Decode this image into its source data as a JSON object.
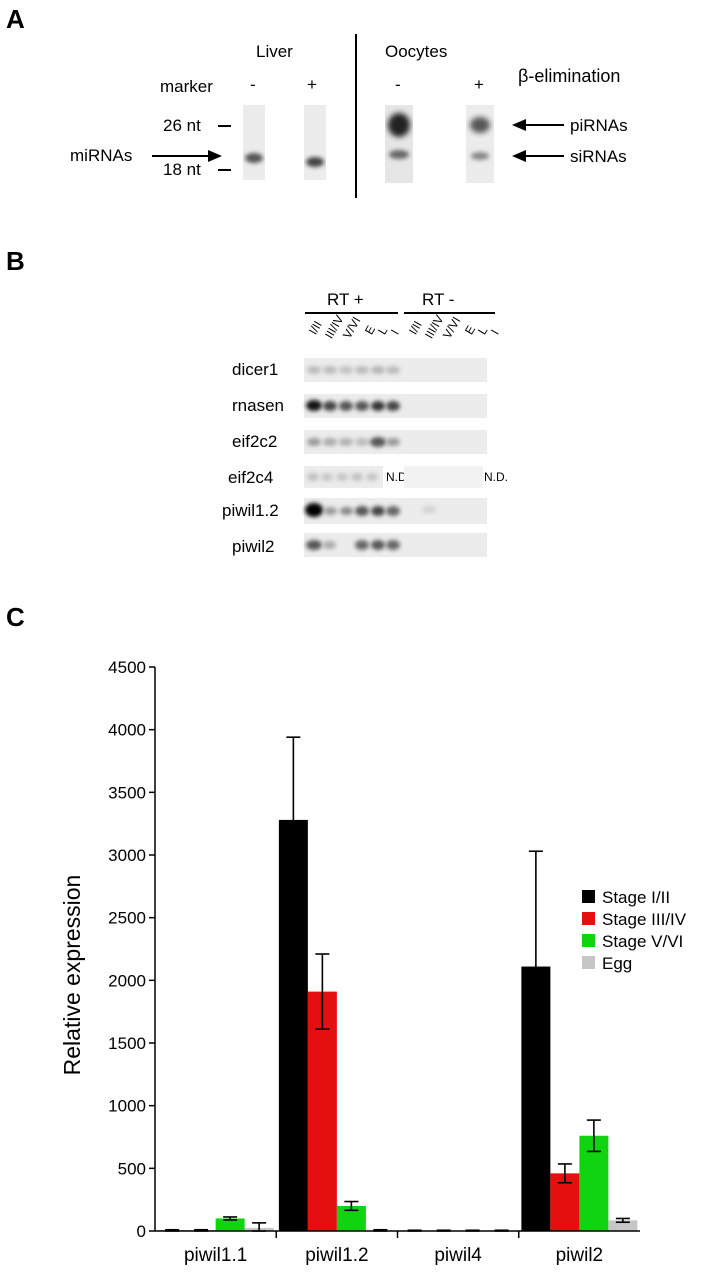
{
  "panels": {
    "a": "A",
    "b": "B",
    "c": "C"
  },
  "panel_a": {
    "liver_label": "Liver",
    "oocytes_label": "Oocytes",
    "marker_label": "marker",
    "minus_1": "-",
    "plus_1": "+",
    "minus_2": "-",
    "plus_2": "+",
    "treatment_label": "β-elimination",
    "size_26": "26 nt",
    "size_18": "18 nt",
    "mirnas_label": "miRNAs",
    "pirnas_label": "piRNAs",
    "sirnas_label": "siRNAs"
  },
  "panel_b": {
    "rt_plus": "RT +",
    "rt_minus": "RT -",
    "lanes_rt_plus": [
      "I/II",
      "III/IV",
      "V/VI",
      "E",
      "L",
      "I"
    ],
    "lanes_rt_minus": [
      "I/II",
      "III/IV",
      "V/VI",
      "E",
      "L",
      "I"
    ],
    "genes": [
      "dicer1",
      "rnasen",
      "eif2c2",
      "eif2c4",
      "piwil1.2",
      "piwil2"
    ],
    "nd_label": "N.D."
  },
  "chart_data": {
    "type": "bar",
    "ylabel": "Relative expression",
    "xlabel": "",
    "ylim": [
      0,
      4500
    ],
    "yticks": [
      0,
      500,
      1000,
      1500,
      2000,
      2500,
      3000,
      3500,
      4000,
      4500
    ],
    "categories": [
      "piwil1.1",
      "piwil1.2",
      "piwil4",
      "piwil2"
    ],
    "legend_position": "right",
    "series": [
      {
        "name": "Stage I/II",
        "color": "#000000",
        "values": [
          5,
          3280,
          3,
          2110
        ],
        "errors": [
          5,
          660,
          3,
          920
        ]
      },
      {
        "name": "Stage III/IV",
        "color": "#e4100f",
        "values": [
          5,
          1910,
          3,
          460
        ],
        "errors": [
          5,
          300,
          3,
          75
        ]
      },
      {
        "name": "Stage V/VI",
        "color": "#10d410",
        "values": [
          100,
          200,
          3,
          760
        ],
        "errors": [
          12,
          35,
          3,
          125
        ]
      },
      {
        "name": "Egg",
        "color": "#c6c6c6",
        "values": [
          25,
          5,
          3,
          85
        ],
        "errors": [
          40,
          5,
          3,
          15
        ]
      }
    ]
  }
}
